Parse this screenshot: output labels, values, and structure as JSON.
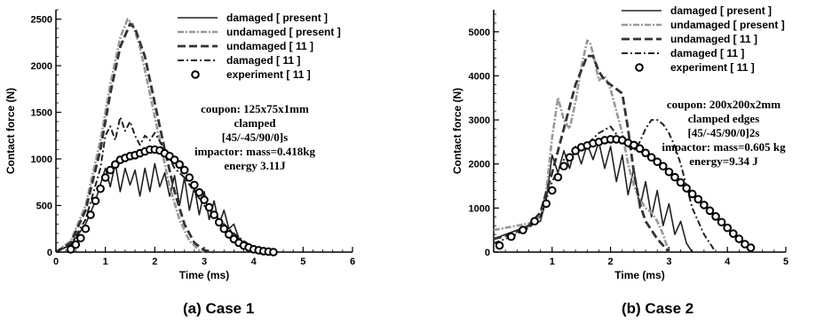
{
  "chart_data": [
    {
      "type": "line",
      "caption": "(a)  Case  1",
      "xlabel": "Time (ms)",
      "ylabel": "Contact force (N)",
      "xlim": [
        0,
        6
      ],
      "ylim": [
        0,
        2600
      ],
      "xticks": [
        0,
        1,
        2,
        3,
        4,
        5,
        6
      ],
      "yticks": [
        0,
        500,
        1000,
        1500,
        2000,
        2500
      ],
      "legend_position": "top-right",
      "annotations": [
        "coupon: 125x75x1mm",
        "clamped",
        "[45/-45/90/0]s",
        "impactor: mass=0.418kg",
        "energy 3.11J"
      ],
      "series": [
        {
          "name": "damaged [ present ]",
          "style": "solid",
          "color": "#222222",
          "x": [
            0,
            0.3,
            0.6,
            0.8,
            1.0,
            1.1,
            1.2,
            1.3,
            1.4,
            1.5,
            1.6,
            1.7,
            1.8,
            1.9,
            2.0,
            2.1,
            2.2,
            2.3,
            2.4,
            2.5,
            2.6,
            2.7,
            2.8,
            2.9,
            3.0,
            3.1,
            3.2,
            3.3,
            3.4,
            3.5,
            3.6,
            3.7,
            3.8,
            4.0,
            4.2,
            4.4
          ],
          "y": [
            0,
            80,
            300,
            550,
            900,
            700,
            950,
            650,
            900,
            720,
            880,
            600,
            900,
            650,
            950,
            700,
            850,
            600,
            820,
            500,
            800,
            450,
            700,
            400,
            650,
            350,
            550,
            300,
            450,
            250,
            300,
            150,
            100,
            50,
            20,
            0
          ]
        },
        {
          "name": "undamaged [ present ]",
          "style": "dashdot-grey",
          "color": "#999999",
          "x": [
            0,
            0.3,
            0.6,
            0.9,
            1.1,
            1.3,
            1.45,
            1.55,
            1.7,
            1.9,
            2.1,
            2.3,
            2.5,
            2.7,
            2.9,
            3.0
          ],
          "y": [
            0,
            120,
            500,
            1200,
            1800,
            2300,
            2500,
            2450,
            2200,
            1700,
            1200,
            700,
            350,
            120,
            20,
            0
          ]
        },
        {
          "name": "undamaged [ 11 ]",
          "style": "dashed",
          "color": "#333333",
          "x": [
            0,
            0.3,
            0.6,
            0.9,
            1.1,
            1.3,
            1.5,
            1.6,
            1.8,
            2.0,
            2.2,
            2.4,
            2.6,
            2.8,
            3.0,
            3.2
          ],
          "y": [
            0,
            100,
            450,
            1100,
            1700,
            2200,
            2450,
            2400,
            2100,
            1600,
            1100,
            650,
            300,
            100,
            20,
            0
          ]
        },
        {
          "name": "damaged [ 11 ]",
          "style": "dashdot",
          "color": "#222222",
          "x": [
            0,
            0.3,
            0.6,
            0.9,
            1.0,
            1.1,
            1.2,
            1.3,
            1.4,
            1.5,
            1.6,
            1.7,
            1.8,
            1.9,
            2.0,
            2.2,
            2.4,
            2.6,
            2.8,
            3.0,
            3.2,
            3.4,
            3.6,
            3.8,
            4.0,
            4.2
          ],
          "y": [
            0,
            80,
            350,
            900,
            1250,
            1350,
            1200,
            1450,
            1300,
            1400,
            1250,
            1150,
            1250,
            1200,
            1280,
            1100,
            900,
            800,
            650,
            500,
            400,
            300,
            200,
            120,
            50,
            0
          ]
        }
      ],
      "scatter": {
        "name": "experiment [ 11 ]",
        "x": [
          0.3,
          0.4,
          0.5,
          0.6,
          0.7,
          0.8,
          0.9,
          1.0,
          1.1,
          1.2,
          1.3,
          1.4,
          1.5,
          1.6,
          1.7,
          1.8,
          1.9,
          2.0,
          2.1,
          2.2,
          2.3,
          2.4,
          2.5,
          2.6,
          2.7,
          2.8,
          2.9,
          3.0,
          3.1,
          3.2,
          3.3,
          3.4,
          3.5,
          3.6,
          3.7,
          3.8,
          3.9,
          4.0,
          4.1,
          4.2,
          4.3,
          4.4
        ],
        "y": [
          30,
          80,
          150,
          250,
          400,
          550,
          680,
          800,
          880,
          940,
          990,
          1010,
          1030,
          1040,
          1060,
          1080,
          1100,
          1100,
          1090,
          1060,
          1030,
          990,
          940,
          880,
          800,
          720,
          640,
          560,
          480,
          400,
          320,
          250,
          190,
          140,
          100,
          70,
          50,
          30,
          20,
          10,
          5,
          0
        ]
      }
    },
    {
      "type": "line",
      "caption": "(b)  Case  2",
      "xlabel": "Time (ms)",
      "ylabel": "Contact force (N)",
      "xlim": [
        0,
        5
      ],
      "ylim": [
        0,
        5500
      ],
      "xticks": [
        1,
        2,
        3,
        4,
        5
      ],
      "yticks": [
        0,
        1000,
        2000,
        3000,
        4000,
        5000
      ],
      "legend_position": "top-right",
      "annotations": [
        "coupon: 200x200x2mm",
        "clamped edges",
        "[45/-45/90/0]2s",
        "impactor: mass=0.605 kg",
        "energy=9.34 J"
      ],
      "series": [
        {
          "name": "damaged [ present ]",
          "style": "solid",
          "color": "#222222",
          "x": [
            0,
            0.2,
            0.4,
            0.6,
            0.8,
            0.9,
            1.0,
            1.1,
            1.2,
            1.3,
            1.4,
            1.5,
            1.6,
            1.7,
            1.8,
            1.9,
            2.0,
            2.1,
            2.2,
            2.3,
            2.4,
            2.5,
            2.6,
            2.7,
            2.8,
            2.9,
            3.0,
            3.1,
            3.2,
            3.3,
            3.4
          ],
          "y": [
            300,
            400,
            500,
            600,
            700,
            1200,
            2200,
            1800,
            2300,
            1900,
            2400,
            2000,
            2450,
            2100,
            2500,
            1900,
            2400,
            1600,
            2200,
            1300,
            1900,
            1000,
            1600,
            800,
            1400,
            600,
            1100,
            400,
            700,
            200,
            0
          ]
        },
        {
          "name": "undamaged [ present ]",
          "style": "dashdot-grey",
          "color": "#999999",
          "x": [
            0,
            0.2,
            0.4,
            0.6,
            0.8,
            0.9,
            1.0,
            1.1,
            1.2,
            1.3,
            1.4,
            1.5,
            1.6,
            1.65,
            1.7,
            1.8,
            1.9,
            2.0,
            2.1,
            2.2,
            2.3,
            2.4,
            2.5,
            2.6,
            2.7,
            2.8,
            2.9,
            3.0
          ],
          "y": [
            500,
            550,
            600,
            650,
            800,
            1400,
            2600,
            3500,
            3000,
            2800,
            3400,
            4200,
            4800,
            4750,
            4500,
            3900,
            4000,
            3700,
            3200,
            2700,
            2000,
            1500,
            1200,
            1000,
            900,
            700,
            400,
            0
          ]
        },
        {
          "name": "undamaged [ 11 ]",
          "style": "dashed",
          "color": "#333333",
          "x": [
            0,
            0.3,
            0.6,
            0.8,
            1.0,
            1.2,
            1.4,
            1.6,
            1.7,
            1.8,
            1.9,
            2.0,
            2.1,
            2.2,
            2.3,
            2.4,
            2.5,
            2.6,
            2.8,
            3.0
          ],
          "y": [
            300,
            400,
            600,
            900,
            1800,
            2800,
            3800,
            4450,
            4450,
            4100,
            3900,
            3800,
            3700,
            3600,
            2800,
            1800,
            1100,
            700,
            300,
            0
          ]
        },
        {
          "name": "damaged [ 11 ]",
          "style": "dashdot",
          "color": "#222222",
          "x": [
            0,
            0.3,
            0.6,
            0.8,
            1.0,
            1.2,
            1.4,
            1.6,
            1.8,
            2.0,
            2.2,
            2.4,
            2.5,
            2.6,
            2.7,
            2.8,
            2.9,
            3.0,
            3.1,
            3.2,
            3.3,
            3.4,
            3.6,
            3.8
          ],
          "y": [
            200,
            350,
            550,
            800,
            1600,
            2100,
            2300,
            2450,
            2700,
            2850,
            2500,
            2300,
            2500,
            2800,
            3000,
            3000,
            2900,
            2700,
            2400,
            2000,
            1500,
            1000,
            400,
            0
          ]
        }
      ],
      "scatter": {
        "name": "experiment [ 11 ]",
        "x": [
          0.1,
          0.3,
          0.5,
          0.7,
          0.9,
          1.0,
          1.1,
          1.2,
          1.3,
          1.4,
          1.5,
          1.6,
          1.7,
          1.8,
          1.9,
          2.0,
          2.1,
          2.2,
          2.3,
          2.4,
          2.5,
          2.6,
          2.7,
          2.8,
          2.9,
          3.0,
          3.1,
          3.2,
          3.3,
          3.4,
          3.5,
          3.6,
          3.7,
          3.8,
          3.9,
          4.0,
          4.1,
          4.2,
          4.3,
          4.4
        ],
        "y": [
          150,
          350,
          500,
          700,
          1100,
          1400,
          1700,
          1950,
          2150,
          2300,
          2380,
          2420,
          2470,
          2500,
          2540,
          2560,
          2560,
          2540,
          2480,
          2430,
          2350,
          2250,
          2150,
          2050,
          1950,
          1820,
          1700,
          1580,
          1450,
          1320,
          1200,
          1070,
          940,
          810,
          680,
          550,
          420,
          300,
          180,
          100
        ]
      }
    }
  ]
}
